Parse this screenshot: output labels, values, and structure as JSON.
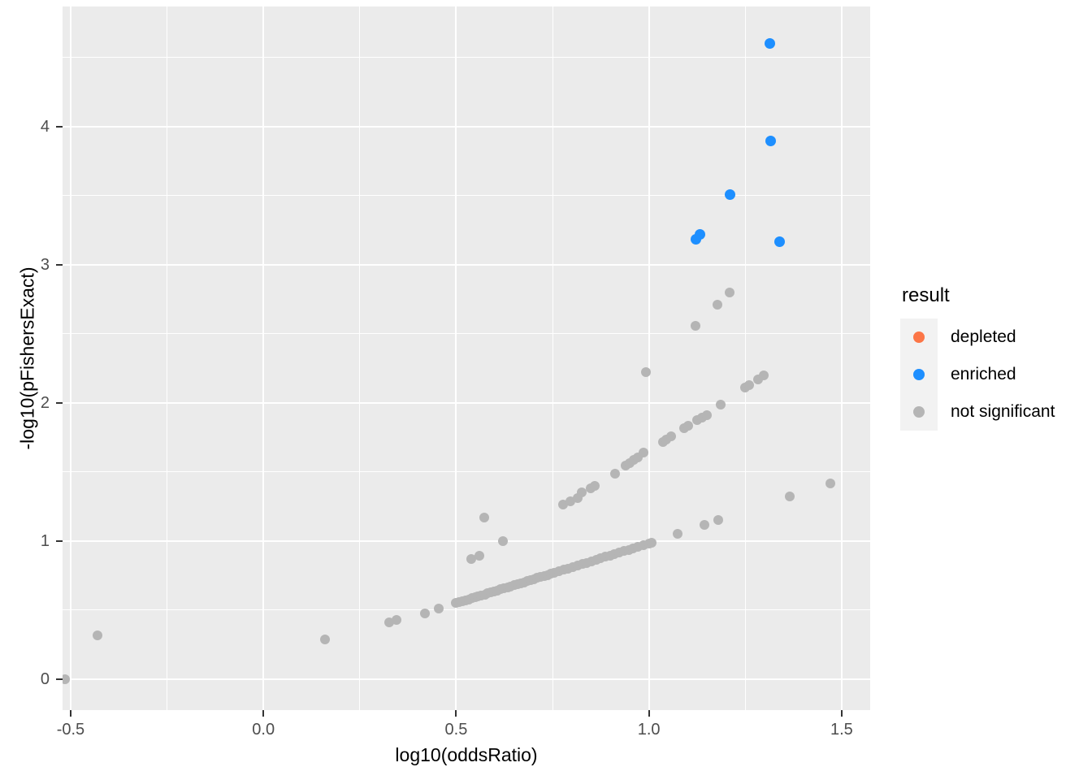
{
  "chart_data": {
    "type": "scatter",
    "title": "",
    "xlabel": "log10(oddsRatio)",
    "ylabel": "-log10(pFishersExact)",
    "x_domain": [
      -0.521,
      1.574
    ],
    "y_domain": [
      -0.224,
      4.87
    ],
    "x_major_ticks": [
      -0.5,
      0.0,
      0.5,
      1.0,
      1.5
    ],
    "x_tick_labels": [
      "-0.5",
      "0.0",
      "0.5",
      "1.0",
      "1.5"
    ],
    "x_minor_ticks": [
      -0.25,
      0.25,
      0.75,
      1.25
    ],
    "y_major_ticks": [
      0,
      1,
      2,
      3,
      4
    ],
    "y_tick_labels": [
      "0",
      "1",
      "2",
      "3",
      "4"
    ],
    "y_minor_ticks": [
      0.5,
      1.5,
      2.5,
      3.5,
      4.5
    ],
    "grid": true,
    "panel_color": "#EBEBEB",
    "legend": {
      "title": "result",
      "position": "right",
      "entries": [
        {
          "label": "depleted",
          "color": "#FC7647"
        },
        {
          "label": "enriched",
          "color": "#1E8FFF"
        },
        {
          "label": "not significant",
          "color": "#B5B5B5"
        }
      ]
    },
    "series": [
      {
        "name": "not significant",
        "color": "#B5B5B5",
        "radius": 6,
        "points": [
          [
            -0.515,
            0.0
          ],
          [
            -0.43,
            0.32
          ],
          [
            0.16,
            0.29
          ],
          [
            0.327,
            0.41
          ],
          [
            0.345,
            0.428
          ],
          [
            0.42,
            0.476
          ],
          [
            0.455,
            0.51
          ],
          [
            0.54,
            0.87
          ],
          [
            0.56,
            0.894
          ],
          [
            0.573,
            1.172
          ],
          [
            0.622,
            1.0
          ],
          [
            0.5,
            0.55
          ],
          [
            0.508,
            0.557
          ],
          [
            0.516,
            0.564
          ],
          [
            0.524,
            0.571
          ],
          [
            0.532,
            0.578
          ],
          [
            0.541,
            0.585
          ],
          [
            0.549,
            0.592
          ],
          [
            0.557,
            0.599
          ],
          [
            0.565,
            0.606
          ],
          [
            0.574,
            0.614
          ],
          [
            0.582,
            0.621
          ],
          [
            0.59,
            0.628
          ],
          [
            0.599,
            0.636
          ],
          [
            0.607,
            0.643
          ],
          [
            0.616,
            0.65
          ],
          [
            0.624,
            0.657
          ],
          [
            0.633,
            0.665
          ],
          [
            0.641,
            0.672
          ],
          [
            0.65,
            0.68
          ],
          [
            0.659,
            0.688
          ],
          [
            0.667,
            0.694
          ],
          [
            0.676,
            0.702
          ],
          [
            0.684,
            0.709
          ],
          [
            0.693,
            0.717
          ],
          [
            0.702,
            0.725
          ],
          [
            0.71,
            0.732
          ],
          [
            0.719,
            0.739
          ],
          [
            0.728,
            0.747
          ],
          [
            0.737,
            0.755
          ],
          [
            0.746,
            0.763
          ],
          [
            0.755,
            0.771
          ],
          [
            0.767,
            0.781
          ],
          [
            0.779,
            0.791
          ],
          [
            0.791,
            0.802
          ],
          [
            0.803,
            0.812
          ],
          [
            0.815,
            0.822
          ],
          [
            0.827,
            0.833
          ],
          [
            0.839,
            0.843
          ],
          [
            0.851,
            0.854
          ],
          [
            0.863,
            0.864
          ],
          [
            0.875,
            0.874
          ],
          [
            0.887,
            0.885
          ],
          [
            0.899,
            0.895
          ],
          [
            0.911,
            0.906
          ],
          [
            0.923,
            0.916
          ],
          [
            0.935,
            0.926
          ],
          [
            0.947,
            0.937
          ],
          [
            0.959,
            0.947
          ],
          [
            0.971,
            0.957
          ],
          [
            0.985,
            0.97
          ],
          [
            1.0,
            0.983
          ],
          [
            1.008,
            0.989
          ],
          [
            1.075,
            1.055
          ],
          [
            1.145,
            1.115
          ],
          [
            1.18,
            1.15
          ],
          [
            1.365,
            1.325
          ],
          [
            1.47,
            1.42
          ],
          [
            0.778,
            1.262
          ],
          [
            0.796,
            1.288
          ],
          [
            0.815,
            1.312
          ],
          [
            0.825,
            1.35
          ],
          [
            0.849,
            1.38
          ],
          [
            0.859,
            1.402
          ],
          [
            0.912,
            1.49
          ],
          [
            0.94,
            1.545
          ],
          [
            0.951,
            1.566
          ],
          [
            0.961,
            1.588
          ],
          [
            0.972,
            1.606
          ],
          [
            0.986,
            1.642
          ],
          [
            1.036,
            1.72
          ],
          [
            1.046,
            1.736
          ],
          [
            1.058,
            1.76
          ],
          [
            1.091,
            1.82
          ],
          [
            1.102,
            1.836
          ],
          [
            1.126,
            1.878
          ],
          [
            1.137,
            1.894
          ],
          [
            1.151,
            1.914
          ],
          [
            1.186,
            1.99
          ],
          [
            1.249,
            2.112
          ],
          [
            1.26,
            2.13
          ],
          [
            1.284,
            2.172
          ],
          [
            1.298,
            2.202
          ],
          [
            0.993,
            2.222
          ],
          [
            1.121,
            2.556
          ],
          [
            1.177,
            2.71
          ],
          [
            1.21,
            2.8
          ]
        ]
      },
      {
        "name": "enriched",
        "color": "#1E8FFF",
        "radius": 6.5,
        "points": [
          [
            1.314,
            4.604
          ],
          [
            1.316,
            3.894
          ],
          [
            1.21,
            3.506
          ],
          [
            1.121,
            3.182
          ],
          [
            1.133,
            3.222
          ],
          [
            1.339,
            3.166
          ]
        ]
      },
      {
        "name": "depleted",
        "color": "#FC7647",
        "radius": 6.5,
        "points": []
      }
    ]
  }
}
